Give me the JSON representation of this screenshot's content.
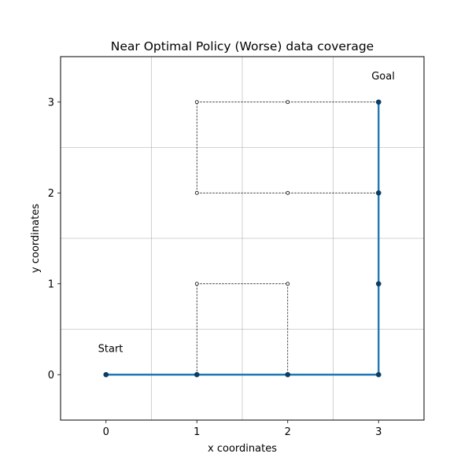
{
  "chart_data": {
    "type": "line",
    "title": "Near Optimal Policy (Worse) data coverage",
    "xlabel": "x coordinates",
    "ylabel": "y coordinates",
    "xlim": [
      -0.5,
      3.5
    ],
    "ylim": [
      -0.5,
      3.5
    ],
    "xticks": [
      0,
      1,
      2,
      3
    ],
    "yticks": [
      0,
      1,
      2,
      3
    ],
    "grid_x": [
      0.5,
      1.5,
      2.5
    ],
    "grid_y": [
      0.5,
      1.5,
      2.5
    ],
    "series": [
      {
        "style": "solid",
        "color": "#1f77b4",
        "points": [
          [
            0,
            0
          ],
          [
            1,
            0
          ],
          [
            2,
            0
          ],
          [
            3,
            0
          ],
          [
            3,
            1
          ],
          [
            3,
            2
          ],
          [
            3,
            3
          ]
        ]
      },
      {
        "style": "dashed",
        "color": "#000000",
        "segments": [
          [
            [
              0,
              0
            ],
            [
              3,
              0
            ]
          ],
          [
            [
              3,
              0
            ],
            [
              3,
              3
            ]
          ],
          [
            [
              1,
              0
            ],
            [
              1,
              1
            ]
          ],
          [
            [
              1,
              1
            ],
            [
              2,
              1
            ]
          ],
          [
            [
              2,
              1
            ],
            [
              2,
              0
            ]
          ],
          [
            [
              1,
              2
            ],
            [
              1,
              3
            ]
          ],
          [
            [
              1,
              3
            ],
            [
              3,
              3
            ]
          ],
          [
            [
              1,
              2
            ],
            [
              3,
              2
            ]
          ]
        ]
      }
    ],
    "markers_filled": [
      [
        0,
        0
      ],
      [
        1,
        0
      ],
      [
        2,
        0
      ],
      [
        3,
        0
      ],
      [
        3,
        1
      ],
      [
        3,
        2
      ],
      [
        3,
        3
      ]
    ],
    "markers_hollow": [
      [
        1,
        1
      ],
      [
        2,
        1
      ],
      [
        1,
        2
      ],
      [
        2,
        2
      ],
      [
        1,
        3
      ],
      [
        2,
        3
      ]
    ],
    "annotations": [
      {
        "text": "Start",
        "x": 0.05,
        "y": 0.25
      },
      {
        "text": "Goal",
        "x": 3.05,
        "y": 3.25
      }
    ]
  }
}
